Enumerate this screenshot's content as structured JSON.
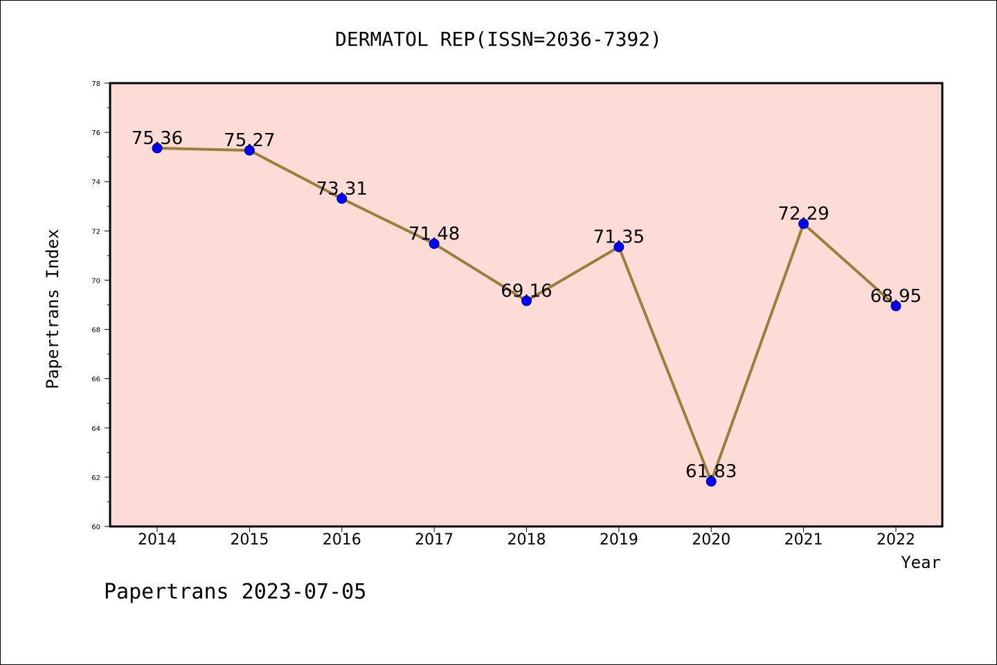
{
  "chart_data": {
    "type": "line",
    "title": "DERMATOL REP(ISSN=2036-7392)",
    "xlabel": "Year",
    "ylabel": "Papertrans Index",
    "categories": [
      "2014",
      "2015",
      "2016",
      "2017",
      "2018",
      "2019",
      "2020",
      "2021",
      "2022"
    ],
    "series": [
      {
        "values": [
          75.36,
          75.27,
          73.31,
          71.48,
          69.16,
          71.35,
          61.83,
          72.29,
          68.95
        ],
        "value_labels": [
          "75.36",
          "75.27",
          "73.31",
          "71.48",
          "69.16",
          "71.35",
          "61.83",
          "72.29",
          "68.95"
        ]
      }
    ],
    "ylim": [
      60,
      78
    ],
    "yticks": [
      "60",
      "62",
      "64",
      "66",
      "68",
      "70",
      "72",
      "74",
      "76",
      "78"
    ],
    "grid": false,
    "legend": "none",
    "colors": {
      "plot_background": "#fddcd8",
      "line": "#9a7f3a",
      "marker": "#0000ff"
    }
  },
  "footer": {
    "text": "Papertrans 2023-07-05"
  }
}
